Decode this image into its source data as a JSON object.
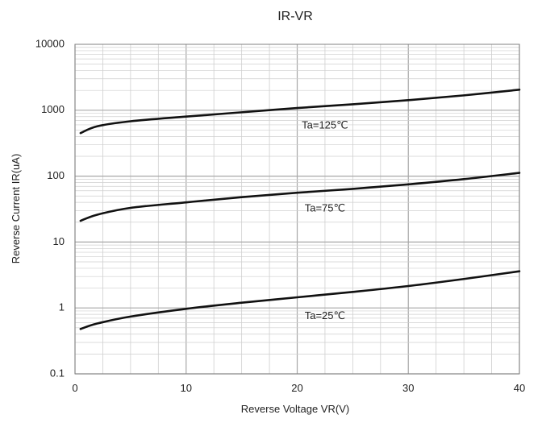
{
  "chart_data": {
    "type": "line",
    "title": "IR-VR",
    "xlabel": "Reverse Voltage VR(V)",
    "ylabel": "Reverse Current IR(uA)",
    "xlim": [
      0,
      40
    ],
    "ylim": [
      0.1,
      10000
    ],
    "y_scale": "log",
    "x_ticks": [
      0,
      10,
      20,
      30,
      40
    ],
    "x_tick_labels": [
      "0",
      "10",
      "20",
      "30",
      "40"
    ],
    "y_ticks": [
      0.1,
      1,
      10,
      100,
      1000,
      10000
    ],
    "y_tick_labels": [
      "0.1",
      "1",
      "10",
      "100",
      "1000",
      "10000"
    ],
    "grid": true,
    "x": [
      0.5,
      2,
      5,
      10,
      15,
      20,
      25,
      30,
      35,
      40
    ],
    "series": [
      {
        "values": [
          450,
          570,
          680,
          800,
          930,
          1080,
          1230,
          1420,
          1680,
          2050
        ]
      },
      {
        "values": [
          21,
          26,
          33,
          40,
          48,
          56,
          64,
          75,
          90,
          112
        ]
      },
      {
        "values": [
          0.48,
          0.58,
          0.74,
          0.97,
          1.2,
          1.45,
          1.75,
          2.15,
          2.75,
          3.6
        ]
      }
    ],
    "annotations": [
      {
        "text": "Ta=125℃",
        "x": 22.5,
        "y": 580
      },
      {
        "text": "Ta=75℃",
        "x": 22.5,
        "y": 32
      },
      {
        "text": "Ta=25℃",
        "x": 22.5,
        "y": 0.75
      }
    ],
    "colors": {
      "line": "#111111",
      "grid_major": "#a8a8a8",
      "grid_minor": "#cfcfcf",
      "frame": "#808080"
    }
  }
}
